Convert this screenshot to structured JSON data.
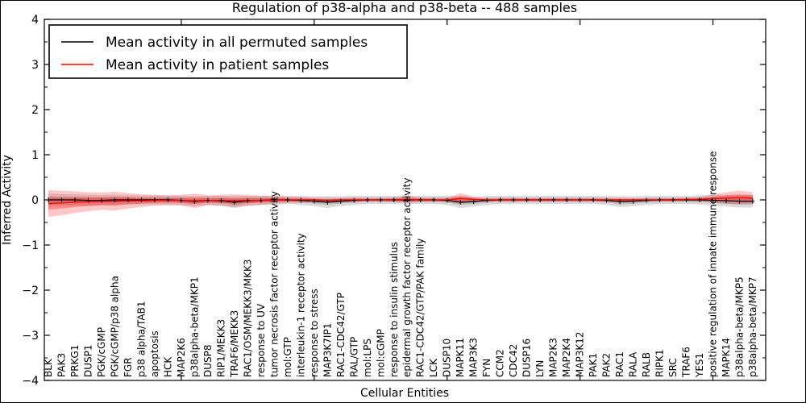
{
  "figure": {
    "background": "#ffffff",
    "border_color": "#000000"
  },
  "legend": {
    "entries": [
      {
        "label": "Mean activity in all permuted samples",
        "color": "#000000"
      },
      {
        "label": "Mean activity in patient samples",
        "color": "#ff0000"
      }
    ]
  },
  "chart_data": {
    "type": "line",
    "title": "Regulation of p38-alpha and p38-beta -- 488 samples",
    "xlabel": "Cellular Entities",
    "ylabel": "Inferred Activity",
    "ylim": [
      -4,
      4
    ],
    "yticks": [
      -4,
      -3,
      -2,
      -1,
      0,
      1,
      2,
      3,
      4
    ],
    "y_minor_step": 0.5,
    "x_major_tick_indices": [
      10,
      20,
      30,
      40,
      50
    ],
    "grid": false,
    "legend_position": "upper left",
    "categories": [
      "BLK",
      "PAK3",
      "PRKG1",
      "DUSP1",
      "PGK/cGMP",
      "PGK/cGMP/p38 alpha",
      "FGR",
      "p38 alpha/TAB1",
      "apoptosis",
      "HCK",
      "MAP2K6",
      "p38alpha-beta/MKP1",
      "DUSP8",
      "RIP1/MEKK3",
      "TRAF6/MEKK3",
      "RAC1/OSM/MEKK3/MKK3",
      "response to UV",
      "tumor necrosis factor receptor activity",
      "mol:GTP",
      "interleukin-1 receptor activity",
      "response to stress",
      "MAP3K7IP1",
      "RAC1-CDC42/GTP",
      "RAL/GTP",
      "mol:LPS",
      "mol:cGMP",
      "response to insulin stimulus",
      "epidermal growth factor receptor activity",
      "RAC1-CDC42/GTP/PAK family",
      "LCK",
      "DUSP10",
      "MAPK11",
      "MAP3K3",
      "FYN",
      "CCM2",
      "CDC42",
      "DUSP16",
      "LYN",
      "MAP2K3",
      "MAP2K4",
      "MAP3K12",
      "PAK1",
      "PAK2",
      "RAC1",
      "RALA",
      "RALB",
      "RIPK1",
      "SRC",
      "TRAF6",
      "YES1",
      "positive regulation of innate immune response",
      "MAPK14",
      "p38alpha-beta/MKP5",
      "p38alpha-beta/MKP7"
    ],
    "series": [
      {
        "name": "Mean activity in all permuted samples",
        "color": "#000000",
        "marker": "plus",
        "values": [
          0,
          0,
          0,
          -0.01,
          -0.01,
          0,
          0,
          0,
          0,
          0,
          -0.01,
          -0.03,
          -0.01,
          -0.02,
          -0.05,
          -0.02,
          -0.01,
          0,
          0,
          -0.01,
          -0.03,
          -0.05,
          -0.03,
          -0.01,
          0,
          0,
          0,
          0,
          0,
          0,
          -0.01,
          -0.05,
          -0.04,
          -0.01,
          0,
          0,
          0,
          0,
          0,
          0,
          0,
          0,
          -0.01,
          -0.04,
          -0.03,
          -0.01,
          0,
          0,
          0,
          0,
          -0.01,
          -0.02,
          -0.03,
          -0.03
        ],
        "band": {
          "color": "#888888",
          "outer_alpha": 0.3,
          "inner_alpha": 0.35,
          "inner_scale": 0.5,
          "outer": [
            0.14,
            0.13,
            0.12,
            0.12,
            0.11,
            0.11,
            0.1,
            0.1,
            0.1,
            0.1,
            0.1,
            0.11,
            0.1,
            0.11,
            0.13,
            0.11,
            0.1,
            0.1,
            0.09,
            0.1,
            0.11,
            0.13,
            0.11,
            0.1,
            0.09,
            0.09,
            0.09,
            0.1,
            0.09,
            0.09,
            0.1,
            0.13,
            0.11,
            0.1,
            0.09,
            0.09,
            0.09,
            0.09,
            0.09,
            0.09,
            0.09,
            0.09,
            0.1,
            0.12,
            0.11,
            0.1,
            0.09,
            0.09,
            0.09,
            0.1,
            0.12,
            0.13,
            0.14,
            0.14
          ]
        }
      },
      {
        "name": "Mean activity in patient samples",
        "color": "#ff0000",
        "marker": "none",
        "values": [
          -0.08,
          -0.07,
          -0.05,
          -0.04,
          -0.03,
          -0.03,
          -0.02,
          -0.02,
          -0.01,
          -0.01,
          -0.01,
          -0.02,
          -0.01,
          -0.01,
          -0.02,
          -0.01,
          -0.01,
          0,
          0,
          0,
          0,
          -0.01,
          0,
          0,
          0,
          0,
          0,
          0.01,
          0,
          0,
          0,
          0.03,
          0.01,
          0,
          0,
          0,
          0,
          0,
          0,
          0,
          0,
          0,
          0,
          0,
          0,
          0,
          0,
          0,
          0.01,
          0.01,
          0.03,
          0.04,
          0.05,
          0.04
        ],
        "band": {
          "color": "#ff0000",
          "outer_alpha": 0.22,
          "inner_alpha": 0.3,
          "inner_scale": 0.45,
          "outer": [
            0.3,
            0.27,
            0.24,
            0.21,
            0.19,
            0.21,
            0.17,
            0.14,
            0.12,
            0.11,
            0.12,
            0.16,
            0.11,
            0.12,
            0.14,
            0.12,
            0.1,
            0.09,
            0.07,
            0.06,
            0.05,
            0.06,
            0.05,
            0.05,
            0.04,
            0.04,
            0.05,
            0.08,
            0.05,
            0.04,
            0.05,
            0.12,
            0.06,
            0.04,
            0.04,
            0.04,
            0.04,
            0.04,
            0.04,
            0.04,
            0.04,
            0.04,
            0.04,
            0.05,
            0.04,
            0.04,
            0.04,
            0.04,
            0.04,
            0.05,
            0.09,
            0.13,
            0.15,
            0.13
          ]
        }
      }
    ]
  }
}
